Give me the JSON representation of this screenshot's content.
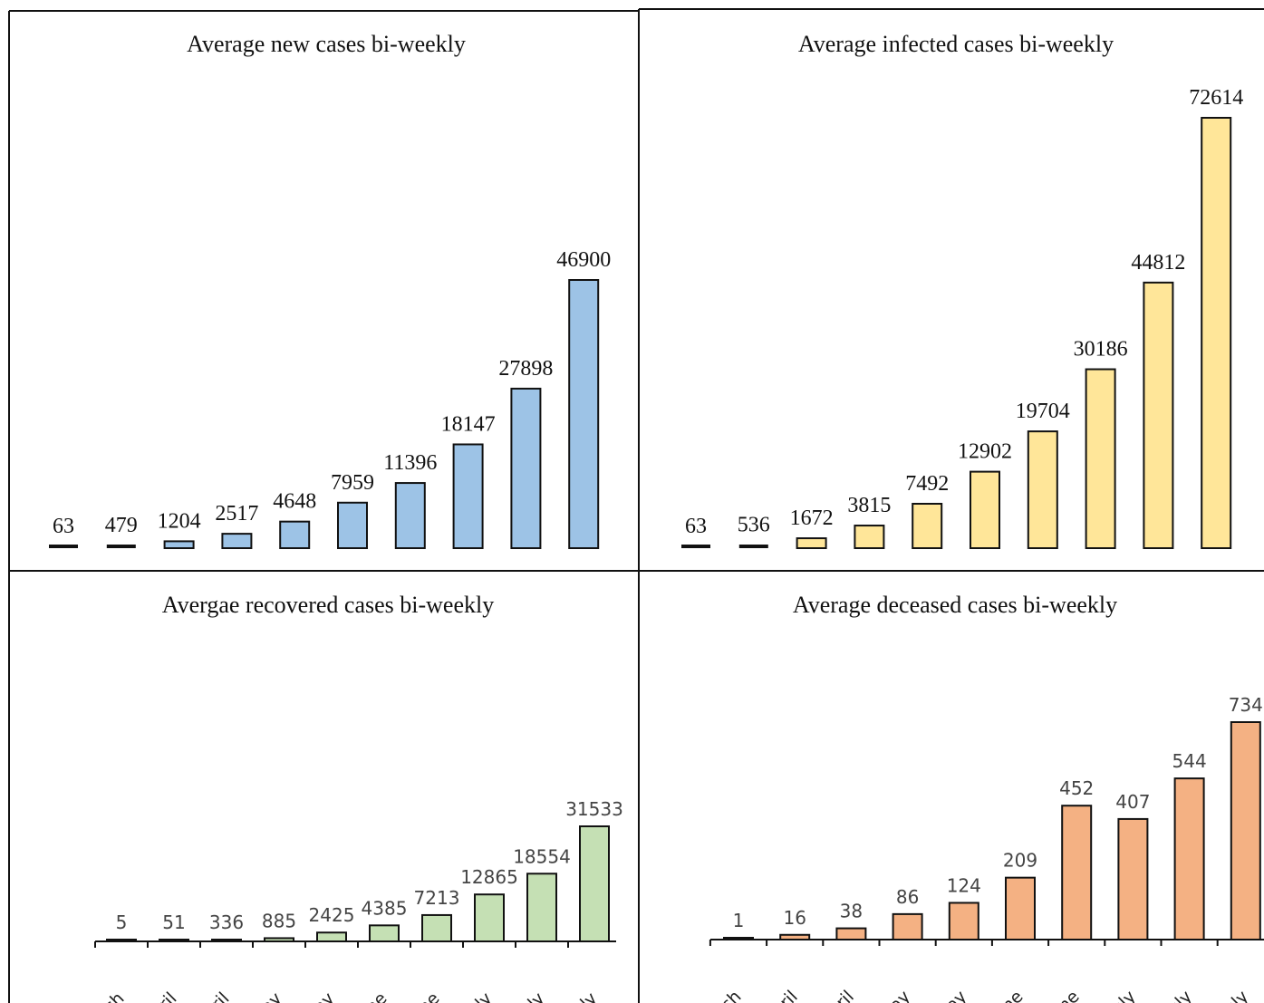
{
  "chart_data": [
    {
      "type": "bar",
      "title": "Average new cases bi-weekly",
      "categories": [
        "",
        "",
        "",
        "",
        "",
        "",
        "",
        "",
        "",
        ""
      ],
      "values": [
        63,
        479,
        1204,
        2517,
        4648,
        7959,
        11396,
        18147,
        27898,
        46900
      ],
      "data_labels": [
        "63",
        "479",
        "1204",
        "2517",
        "4648",
        "7959",
        "11396",
        "18147",
        "27898",
        "46900"
      ],
      "ylim": [
        0,
        46900
      ],
      "grid": false,
      "color": "#9dc3e6"
    },
    {
      "type": "bar",
      "title": "Average infected cases bi-weekly",
      "categories": [
        "",
        "",
        "",
        "",
        "",
        "",
        "",
        "",
        "",
        ""
      ],
      "values": [
        63,
        536,
        1672,
        3815,
        7492,
        12902,
        19704,
        30186,
        44812,
        72614
      ],
      "data_labels": [
        "63",
        "536",
        "1672",
        "3815",
        "7492",
        "12902",
        "19704",
        "30186",
        "44812",
        "72614"
      ],
      "ylim": [
        0,
        72614
      ],
      "grid": false,
      "color": "#ffe699"
    },
    {
      "type": "bar",
      "title": "Avergae recovered cases bi-weekly",
      "categories": [
        "March",
        "April",
        "April",
        "May",
        "May",
        "June",
        "June",
        "July",
        "July",
        "July"
      ],
      "values": [
        5,
        51,
        336,
        885,
        2425,
        4385,
        7213,
        12865,
        18554,
        31533
      ],
      "data_labels": [
        "5",
        "51",
        "336",
        "885",
        "2425",
        "4385",
        "7213",
        "12865",
        "18554",
        "31533"
      ],
      "ylim": [
        0,
        31533
      ],
      "grid": false,
      "color": "#c5e0b4"
    },
    {
      "type": "bar",
      "title": "Average deceased cases bi-weekly",
      "categories": [
        "March",
        "April",
        "April",
        "May",
        "May",
        "June",
        "June",
        "July",
        "July",
        "July"
      ],
      "values": [
        1,
        16,
        38,
        86,
        124,
        209,
        452,
        407,
        544,
        734
      ],
      "data_labels": [
        "1",
        "16",
        "38",
        "86",
        "124",
        "209",
        "452",
        "407",
        "544",
        "734"
      ],
      "ylim": [
        0,
        734
      ],
      "grid": false,
      "color": "#f4b183"
    }
  ]
}
